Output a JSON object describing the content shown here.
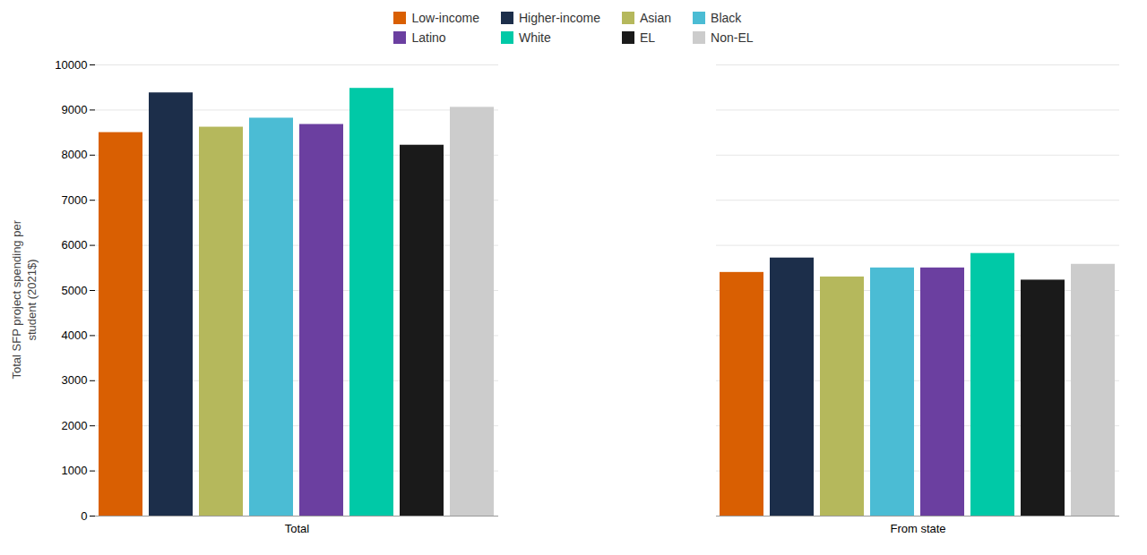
{
  "chart_data": {
    "type": "bar",
    "ylabel": "Total SFP project spending per\nstudent (2021$)",
    "categories": [
      "Total",
      "From state"
    ],
    "series": [
      {
        "name": "Low-income",
        "color": "#d95f02",
        "values": [
          8500,
          5400
        ]
      },
      {
        "name": "Higher-income",
        "color": "#1c2e4a",
        "values": [
          9380,
          5720
        ]
      },
      {
        "name": "Asian",
        "color": "#b5b85c",
        "values": [
          8620,
          5300
        ]
      },
      {
        "name": "Black",
        "color": "#4bbcd4",
        "values": [
          8820,
          5500
        ]
      },
      {
        "name": "Latino",
        "color": "#6b3fa0",
        "values": [
          8680,
          5500
        ]
      },
      {
        "name": "White",
        "color": "#00c9a7",
        "values": [
          9480,
          5820
        ]
      },
      {
        "name": "EL",
        "color": "#1a1a1a",
        "values": [
          8220,
          5230
        ]
      },
      {
        "name": "Non-EL",
        "color": "#cccccc",
        "values": [
          9060,
          5580
        ]
      }
    ],
    "ylim": [
      0,
      10000
    ],
    "yticks": [
      0,
      1000,
      2000,
      3000,
      4000,
      5000,
      6000,
      7000,
      8000,
      9000,
      10000
    ],
    "grid": true,
    "legend": "top"
  }
}
